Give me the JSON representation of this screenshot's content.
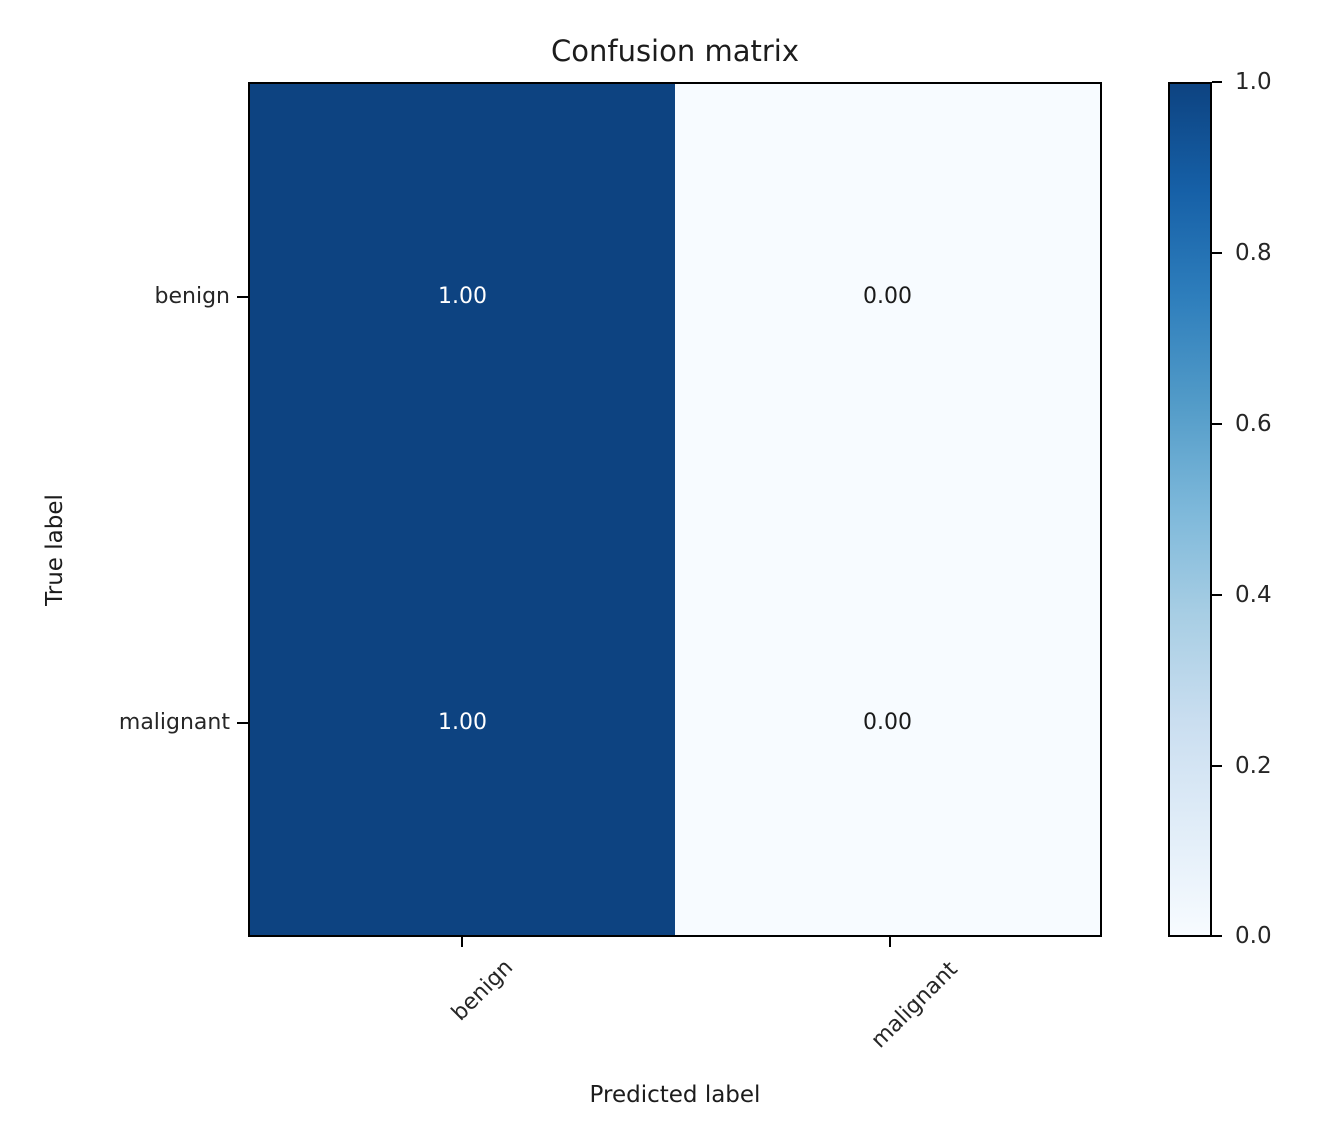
{
  "figure": {
    "background": "#ffffff"
  },
  "chart_data": {
    "type": "heatmap",
    "title": "Confusion matrix",
    "xlabel": "Predicted label",
    "ylabel": "True label",
    "x_categories": [
      "benign",
      "malignant"
    ],
    "y_categories": [
      "benign",
      "malignant"
    ],
    "values": [
      [
        1.0,
        0.0
      ],
      [
        1.0,
        0.0
      ]
    ],
    "cell_labels": [
      [
        "1.00",
        "0.00"
      ],
      [
        "1.00",
        "0.00"
      ]
    ],
    "value_range": [
      0.0,
      1.0
    ],
    "colormap": "Blues",
    "colormap_stops": [
      "#f7fbff",
      "#e1edf8",
      "#cadef0",
      "#a8cee4",
      "#7db8da",
      "#529bc8",
      "#2e7ebc",
      "#1660a7",
      "#0d4381"
    ],
    "colorbar_ticks": [
      "1.0",
      "0.8",
      "0.6",
      "0.4",
      "0.2",
      "0.0"
    ],
    "colorbar_position": "right",
    "grid": false,
    "xtick_rotation_deg": 45,
    "cell_text_color_on_dark": "#ffffff",
    "cell_text_color_on_light": "#1a1a1a"
  }
}
